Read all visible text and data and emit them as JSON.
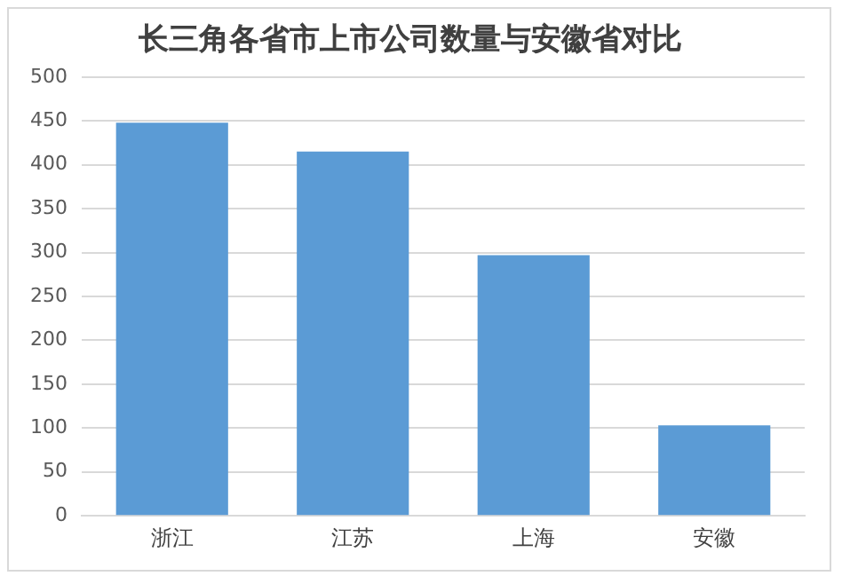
{
  "chart_data": {
    "type": "bar",
    "title": "长三角各省市上市公司数量与安徽省对比",
    "categories": [
      "浙江",
      "江苏",
      "上海",
      "安徽"
    ],
    "values": [
      448,
      415,
      297,
      103
    ],
    "color": "#5b9bd5",
    "ylim": [
      0,
      500
    ],
    "yticks": [
      0,
      50,
      100,
      150,
      200,
      250,
      300,
      350,
      400,
      450,
      500
    ],
    "grid": "y"
  }
}
